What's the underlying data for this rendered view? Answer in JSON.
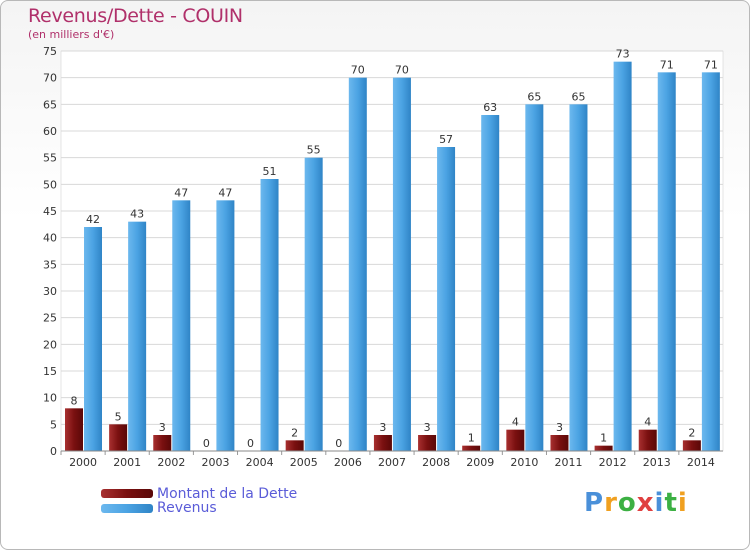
{
  "title": "Revenus/Dette - COUIN",
  "subtitle": "(en milliers d'€)",
  "logo": {
    "text": "Proxiti",
    "colors": [
      "#4a90d9",
      "#f0a020",
      "#3cb043",
      "#e04040",
      "#4a90d9",
      "#3cb043",
      "#f0a020"
    ]
  },
  "chart_data": {
    "type": "bar",
    "title": "Revenus/Dette - COUIN",
    "ylabel": "(en milliers d'€)",
    "xlabel": "",
    "ylim": [
      0,
      75
    ],
    "yticks": [
      0,
      5,
      10,
      15,
      20,
      25,
      30,
      35,
      40,
      45,
      50,
      55,
      60,
      65,
      70,
      75
    ],
    "grid": true,
    "legend_position": "bottom-left",
    "categories": [
      "2000",
      "2001",
      "2002",
      "2003",
      "2004",
      "2005",
      "2006",
      "2007",
      "2008",
      "2009",
      "2010",
      "2011",
      "2012",
      "2013",
      "2014"
    ],
    "series": [
      {
        "name": "Montant de la Dette",
        "color": "#8b1a1a",
        "values": [
          8,
          5,
          3,
          0,
          0,
          2,
          0,
          3,
          3,
          1,
          4,
          3,
          1,
          4,
          2
        ]
      },
      {
        "name": "Revenus",
        "color": "#4ba3e3",
        "values": [
          42,
          43,
          47,
          47,
          51,
          55,
          70,
          70,
          57,
          63,
          65,
          65,
          73,
          71,
          71
        ]
      }
    ]
  }
}
